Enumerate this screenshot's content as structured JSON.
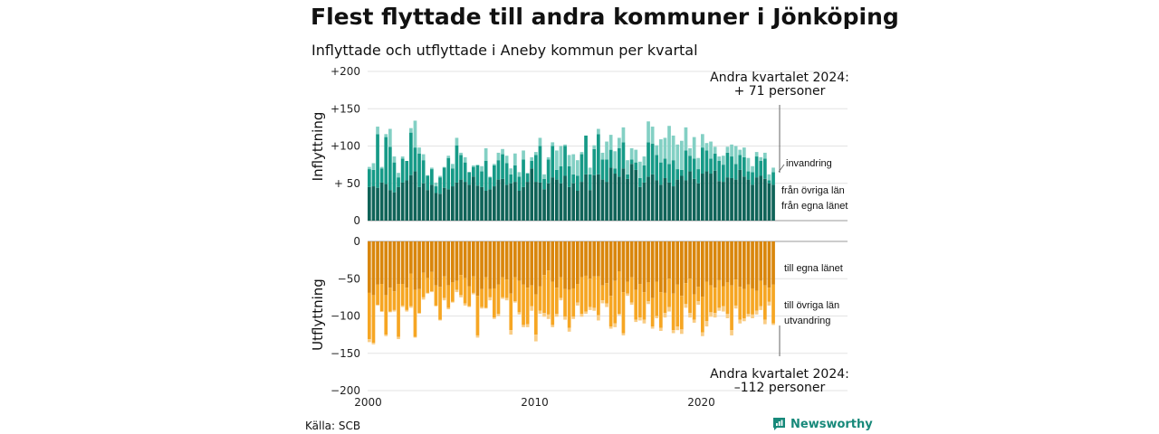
{
  "title": "Flest flyttade till andra kommuner i Jönköping",
  "subtitle": "Inflyttade och utflyttade i Aneby kommun per kvartal",
  "source": "Källa: SCB",
  "brand": "Newsworthy",
  "colors": {
    "in_own": "#0f6358",
    "in_other": "#169a87",
    "in_immigration": "#83d0c4",
    "out_own": "#d9860c",
    "out_other": "#f6a623",
    "out_emigration": "#f9cd86",
    "brand": "#17897a"
  },
  "annotations": {
    "in_line1": "Andra kvartalet 2024:",
    "in_line2": "+ 71 personer",
    "out_line1": "Andra kvartalet 2024:",
    "out_line2": "–112 personer"
  },
  "chart_data": {
    "type": "bar",
    "stacked": true,
    "frequency": "quarterly",
    "start": "2000 Q1",
    "end": "2024 Q2",
    "x_ticks": [
      "2000",
      "2010",
      "2020"
    ],
    "panels": [
      {
        "id": "in",
        "ylabel": "Inflyttning",
        "ylim": [
          0,
          200
        ],
        "yticks": [
          0,
          50,
          100,
          150,
          200
        ],
        "ytick_labels": [
          "0",
          "+ 50",
          "+100",
          "+150",
          "+200"
        ],
        "series": [
          {
            "name": "från egna länet",
            "values": [
              45,
              46,
              44,
              51,
              49,
              41,
              38,
              45,
              51,
              54,
              61,
              66,
              45,
              50,
              41,
              48,
              37,
              36,
              44,
              42,
              46,
              51,
              55,
              52,
              48,
              59,
              47,
              45,
              40,
              42,
              46,
              55,
              56,
              48,
              50,
              52,
              40,
              45,
              52,
              70,
              52,
              51,
              42,
              50,
              58,
              55,
              50,
              60,
              45,
              50,
              40,
              52,
              62,
              41,
              61,
              62,
              55,
              52,
              71,
              63,
              59,
              70,
              56,
              76,
              68,
              45,
              51,
              59,
              62,
              54,
              48,
              57,
              51,
              46,
              55,
              60,
              54,
              66,
              56,
              50,
              63,
              66,
              63,
              67,
              53,
              52,
              58,
              57,
              55,
              68,
              59,
              55,
              48,
              58,
              60,
              56,
              50,
              48
            ]
          },
          {
            "name": "från övriga län",
            "values": [
              24,
              22,
              72,
              19,
              63,
              58,
              40,
              13,
              32,
              26,
              57,
              32,
              45,
              31,
              19,
              21,
              9,
              22,
              27,
              42,
              24,
              50,
              33,
              26,
              17,
              13,
              27,
              21,
              40,
              16,
              28,
              26,
              33,
              29,
              12,
              22,
              19,
              37,
              11,
              10,
              36,
              49,
              14,
              32,
              42,
              13,
              23,
              40,
              28,
              12,
              20,
              37,
              52,
              21,
              35,
              54,
              27,
              30,
              24,
              7,
              38,
              35,
              6,
              6,
              10,
              12,
              23,
              46,
              41,
              34,
              30,
              26,
              25,
              35,
              14,
              8,
              40,
              21,
              27,
              19,
              35,
              28,
              20,
              23,
              27,
              23,
              33,
              29,
              21,
              20,
              26,
              11,
              17,
              28,
              20,
              27,
              4,
              17
            ]
          },
          {
            "name": "invandring",
            "values": [
              3,
              9,
              10,
              2,
              4,
              24,
              8,
              6,
              3,
              0,
              6,
              36,
              8,
              8,
              1,
              2,
              5,
              2,
              1,
              3,
              6,
              10,
              3,
              7,
              0,
              2,
              1,
              7,
              17,
              1,
              2,
              10,
              7,
              10,
              8,
              16,
              6,
              12,
              1,
              5,
              4,
              11,
              6,
              3,
              5,
              26,
              27,
              2,
              15,
              27,
              21,
              3,
              0,
              9,
              5,
              7,
              9,
              24,
              20,
              23,
              14,
              20,
              19,
              15,
              17,
              22,
              12,
              28,
              23,
              13,
              31,
              28,
              51,
              33,
              33,
              39,
              31,
              10,
              29,
              15,
              18,
              10,
              23,
              9,
              6,
              12,
              8,
              16,
              24,
              7,
              13,
              18,
              8,
              6,
              5,
              8,
              8,
              6
            ]
          }
        ]
      },
      {
        "id": "out",
        "ylabel": "Utflyttning",
        "ylim": [
          -200,
          0
        ],
        "yticks": [
          0,
          -50,
          -100,
          -150,
          -200
        ],
        "ytick_labels": [
          "0",
          "−50",
          "−100",
          "−150",
          "−200"
        ],
        "series": [
          {
            "name": "till egna länet",
            "values": [
              -69,
              -72,
              -58,
              -57,
              -72,
              -62,
              -67,
              -57,
              -57,
              -62,
              -43,
              -65,
              -64,
              -42,
              -49,
              -41,
              -59,
              -61,
              -47,
              -59,
              -55,
              -53,
              -45,
              -49,
              -60,
              -47,
              -73,
              -64,
              -48,
              -64,
              -63,
              -58,
              -48,
              -51,
              -70,
              -48,
              -53,
              -58,
              -62,
              -59,
              -71,
              -60,
              -45,
              -39,
              -54,
              -62,
              -48,
              -64,
              -65,
              -63,
              -57,
              -48,
              -46,
              -50,
              -47,
              -47,
              -59,
              -56,
              -73,
              -53,
              -40,
              -68,
              -54,
              -48,
              -65,
              -57,
              -68,
              -55,
              -76,
              -54,
              -68,
              -69,
              -50,
              -70,
              -58,
              -73,
              -56,
              -50,
              -71,
              -61,
              -74,
              -54,
              -59,
              -62,
              -52,
              -60,
              -55,
              -59,
              -51,
              -61,
              -64,
              -58,
              -63,
              -66,
              -53,
              -59,
              -62,
              -58
            ]
          },
          {
            "name": "till övriga län",
            "values": [
              -62,
              -64,
              -27,
              -37,
              -53,
              -32,
              -25,
              -71,
              -29,
              -30,
              -44,
              -63,
              -32,
              -33,
              -20,
              -26,
              -27,
              -44,
              -29,
              -30,
              -26,
              -12,
              -27,
              -34,
              -27,
              -22,
              -53,
              -24,
              -41,
              -11,
              -39,
              -39,
              -27,
              -25,
              -49,
              -32,
              -42,
              -54,
              -49,
              -28,
              -54,
              -33,
              -51,
              -59,
              -58,
              -35,
              -28,
              -37,
              -51,
              -38,
              -25,
              -49,
              -48,
              -38,
              -42,
              -52,
              -20,
              -27,
              -41,
              -57,
              -57,
              -55,
              -16,
              -34,
              -40,
              -45,
              -37,
              -25,
              -38,
              -46,
              -48,
              -27,
              -38,
              -49,
              -56,
              -45,
              -28,
              -46,
              -34,
              -19,
              -48,
              -53,
              -36,
              -34,
              -37,
              -27,
              -42,
              -60,
              -35,
              -44,
              -39,
              -39,
              -35,
              -27,
              -34,
              -46,
              -19,
              -52
            ]
          },
          {
            "name": "utvandring",
            "values": [
              -4,
              -2,
              -1,
              0,
              -2,
              -1,
              -2,
              -3,
              -2,
              -2,
              -2,
              -1,
              -1,
              -3,
              -1,
              -1,
              -1,
              -1,
              -3,
              -2,
              -1,
              -3,
              -3,
              -3,
              -1,
              -2,
              -3,
              -2,
              -1,
              -4,
              -2,
              -3,
              -2,
              -3,
              -6,
              -2,
              -3,
              -3,
              -4,
              -6,
              -9,
              -4,
              -5,
              -6,
              -3,
              -4,
              -3,
              -4,
              -5,
              -3,
              -4,
              -4,
              -3,
              -4,
              -4,
              -7,
              -4,
              -5,
              -3,
              -5,
              -2,
              -3,
              -3,
              -3,
              -3,
              -4,
              -5,
              -4,
              -3,
              -3,
              -4,
              -6,
              -6,
              -4,
              -5,
              -6,
              -5,
              -6,
              -4,
              -5,
              -5,
              -7,
              -6,
              -6,
              -4,
              -7,
              -6,
              -7,
              -4,
              -5,
              -4,
              -4,
              -5,
              -5,
              -5,
              -6,
              -5,
              -2
            ]
          }
        ]
      }
    ]
  }
}
